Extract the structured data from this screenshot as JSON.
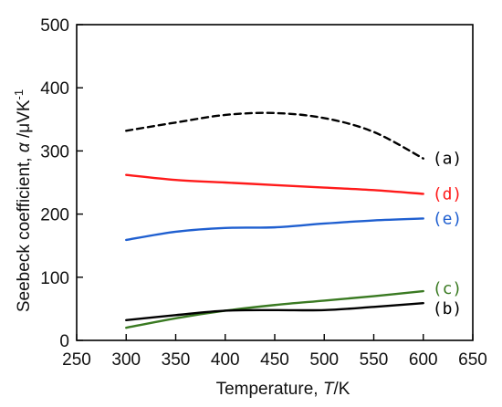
{
  "chart_data": {
    "type": "line",
    "xlabel": "Temperature, T/K",
    "xlabel_parts": {
      "prefix": "Temperature, ",
      "symbol": "T",
      "suffix": "/K"
    },
    "ylabel": "Seebeck coefficient, α /μVK⁻¹",
    "ylabel_parts": {
      "prefix": "Seebeck coefficient, ",
      "symbol": "α",
      "suffix": " /μVK",
      "sup": "-1"
    },
    "xlim": [
      250,
      650
    ],
    "ylim": [
      0,
      500
    ],
    "xticks": [
      250,
      300,
      350,
      400,
      450,
      500,
      550,
      600,
      650
    ],
    "yticks": [
      0,
      100,
      200,
      300,
      400,
      500
    ],
    "grid": false,
    "legend": "inline labels at right end of each series",
    "series": [
      {
        "label": "(a)",
        "color": "#000000",
        "dashed": true,
        "x": [
          300,
          350,
          400,
          450,
          500,
          550,
          600
        ],
        "y": [
          332,
          345,
          357,
          360,
          352,
          330,
          288
        ]
      },
      {
        "label": "(d)",
        "color": "#ff1a1a",
        "dashed": false,
        "x": [
          300,
          350,
          400,
          450,
          500,
          550,
          600
        ],
        "y": [
          262,
          254,
          250,
          246,
          242,
          238,
          232
        ]
      },
      {
        "label": "(e)",
        "color": "#1f5fd0",
        "dashed": false,
        "x": [
          300,
          350,
          400,
          450,
          500,
          550,
          600
        ],
        "y": [
          159,
          172,
          178,
          179,
          185,
          190,
          193
        ]
      },
      {
        "label": "(c)",
        "color": "#3a7a22",
        "dashed": false,
        "x": [
          300,
          350,
          400,
          450,
          500,
          550,
          600
        ],
        "y": [
          20,
          35,
          47,
          56,
          63,
          70,
          78
        ]
      },
      {
        "label": "(b)",
        "color": "#000000",
        "dashed": false,
        "x": [
          300,
          350,
          400,
          450,
          500,
          550,
          600
        ],
        "y": [
          32,
          40,
          47,
          48,
          48,
          53,
          59
        ]
      }
    ]
  }
}
